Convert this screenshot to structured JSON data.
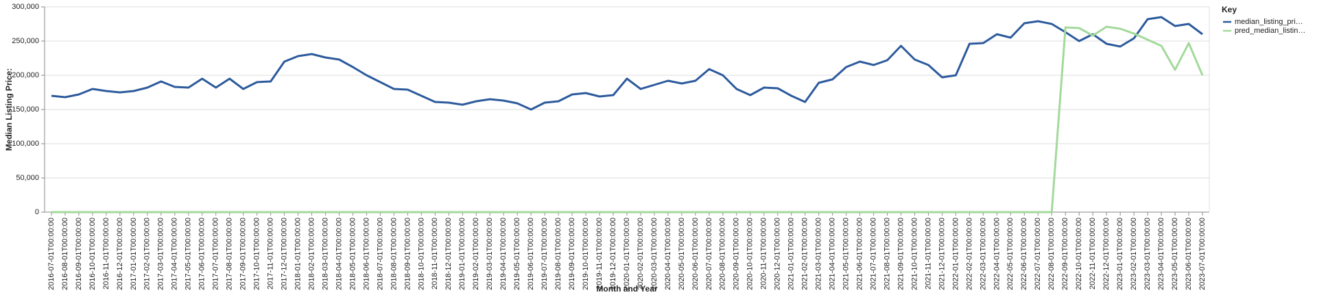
{
  "chart_data": {
    "type": "line",
    "y_label": "Median Listing Price:",
    "x_label": "Month and Year",
    "legend_title": "Key",
    "categories": [
      "2016-07-01T00:00:00",
      "2016-08-01T00:00:00",
      "2016-09-01T00:00:00",
      "2016-10-01T00:00:00",
      "2016-11-01T00:00:00",
      "2016-12-01T00:00:00",
      "2017-01-01T00:00:00",
      "2017-02-01T00:00:00",
      "2017-03-01T00:00:00",
      "2017-04-01T00:00:00",
      "2017-05-01T00:00:00",
      "2017-06-01T00:00:00",
      "2017-07-01T00:00:00",
      "2017-08-01T00:00:00",
      "2017-09-01T00:00:00",
      "2017-10-01T00:00:00",
      "2017-11-01T00:00:00",
      "2017-12-01T00:00:00",
      "2018-01-01T00:00:00",
      "2018-02-01T00:00:00",
      "2018-03-01T00:00:00",
      "2018-04-01T00:00:00",
      "2018-05-01T00:00:00",
      "2018-06-01T00:00:00",
      "2018-07-01T00:00:00",
      "2018-08-01T00:00:00",
      "2018-09-01T00:00:00",
      "2018-10-01T00:00:00",
      "2018-11-01T00:00:00",
      "2018-12-01T00:00:00",
      "2019-01-01T00:00:00",
      "2019-02-01T00:00:00",
      "2019-03-01T00:00:00",
      "2019-04-01T00:00:00",
      "2019-05-01T00:00:00",
      "2019-06-01T00:00:00",
      "2019-07-01T00:00:00",
      "2019-08-01T00:00:00",
      "2019-09-01T00:00:00",
      "2019-10-01T00:00:00",
      "2019-11-01T00:00:00",
      "2019-12-01T00:00:00",
      "2020-01-01T00:00:00",
      "2020-02-01T00:00:00",
      "2020-03-01T00:00:00",
      "2020-04-01T00:00:00",
      "2020-05-01T00:00:00",
      "2020-06-01T00:00:00",
      "2020-07-01T00:00:00",
      "2020-08-01T00:00:00",
      "2020-09-01T00:00:00",
      "2020-10-01T00:00:00",
      "2020-11-01T00:00:00",
      "2020-12-01T00:00:00",
      "2021-01-01T00:00:00",
      "2021-02-01T00:00:00",
      "2021-03-01T00:00:00",
      "2021-04-01T00:00:00",
      "2021-05-01T00:00:00",
      "2021-06-01T00:00:00",
      "2021-07-01T00:00:00",
      "2021-08-01T00:00:00",
      "2021-09-01T00:00:00",
      "2021-10-01T00:00:00",
      "2021-11-01T00:00:00",
      "2021-12-01T00:00:00",
      "2022-01-01T00:00:00",
      "2022-02-01T00:00:00",
      "2022-03-01T00:00:00",
      "2022-04-01T00:00:00",
      "2022-05-01T00:00:00",
      "2022-06-01T00:00:00",
      "2022-07-01T00:00:00",
      "2022-08-01T00:00:00",
      "2022-09-01T00:00:00",
      "2022-10-01T00:00:00",
      "2022-11-01T00:00:00",
      "2022-12-01T00:00:00",
      "2023-01-01T00:00:00",
      "2023-02-01T00:00:00",
      "2023-03-01T00:00:00",
      "2023-04-01T00:00:00",
      "2023-05-01T00:00:00",
      "2023-06-01T00:00:00",
      "2023-07-01T00:00:00"
    ],
    "series": [
      {
        "name": "median_listing_pri…",
        "color": "#2c5a9c",
        "values": [
          170000,
          168000,
          172000,
          180000,
          177000,
          175000,
          177000,
          182000,
          191000,
          183000,
          182000,
          195000,
          182000,
          195000,
          180000,
          190000,
          191000,
          220000,
          228000,
          231000,
          226000,
          223000,
          212000,
          200000,
          190000,
          180000,
          179000,
          170000,
          161000,
          160000,
          157000,
          162000,
          165000,
          163000,
          159000,
          150000,
          160000,
          162000,
          172000,
          174000,
          169000,
          171000,
          195000,
          180000,
          186000,
          192000,
          188000,
          192000,
          209000,
          200000,
          180000,
          171000,
          182000,
          181000,
          170000,
          161000,
          189000,
          194000,
          212000,
          220000,
          215000,
          222000,
          243000,
          223000,
          215000,
          197000,
          200000,
          246000,
          247000,
          260000,
          255000,
          276000,
          279000,
          275000,
          263000,
          250000,
          260000,
          246000,
          242000,
          254000,
          282000,
          285000,
          272000,
          275000,
          260000
        ]
      },
      {
        "name": "pred_median_listin…",
        "color": "#a3d99b",
        "values": [
          0,
          0,
          0,
          0,
          0,
          0,
          0,
          0,
          0,
          0,
          0,
          0,
          0,
          0,
          0,
          0,
          0,
          0,
          0,
          0,
          0,
          0,
          0,
          0,
          0,
          0,
          0,
          0,
          0,
          0,
          0,
          0,
          0,
          0,
          0,
          0,
          0,
          0,
          0,
          0,
          0,
          0,
          0,
          0,
          0,
          0,
          0,
          0,
          0,
          0,
          0,
          0,
          0,
          0,
          0,
          0,
          0,
          0,
          0,
          0,
          0,
          0,
          0,
          0,
          0,
          0,
          0,
          0,
          0,
          0,
          0,
          0,
          0,
          0,
          270000,
          269000,
          258000,
          271000,
          268000,
          261000,
          252000,
          243000,
          208000,
          247000,
          200000
        ]
      }
    ],
    "ylim": [
      0,
      300000
    ],
    "yticks": [
      0,
      {
        "value": 50000,
        "label": "50,000"
      },
      {
        "value": 100000,
        "label": "100,000"
      },
      {
        "value": 150000,
        "label": "150,000"
      },
      {
        "value": 200000,
        "label": "200,000"
      },
      {
        "value": 250000,
        "label": "250,000"
      },
      {
        "value": 300000,
        "label": "300,000"
      }
    ],
    "grid": true
  }
}
